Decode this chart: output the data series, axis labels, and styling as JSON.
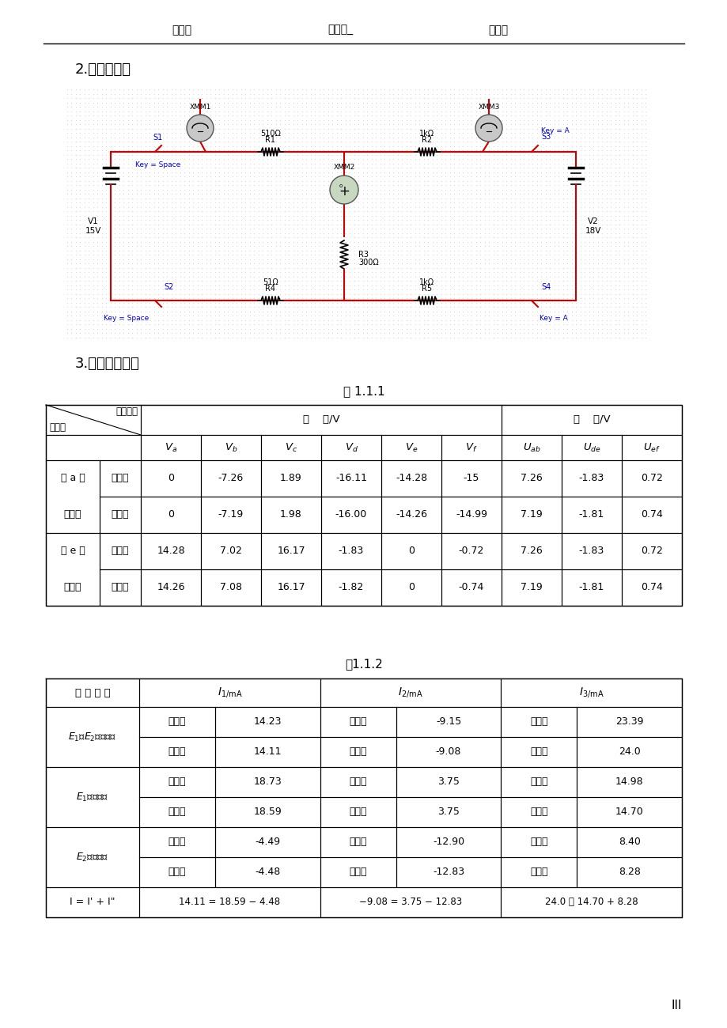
{
  "header_line1": "班级：",
  "header_line2": "姓名：_",
  "header_line3": "学号：",
  "section2_title": "2.实验电路图",
  "section3_title": "3.实验测量表格",
  "table1_title": "表 1.1.1",
  "table2_title": "表1.1.2",
  "page_num": "III",
  "table1": {
    "header1_diag_top": "测量内容",
    "header1_diag_bot": "参考点",
    "col_group1_label": "电    位/V",
    "col_group2_label": "电    压/V",
    "col_group1_ncols": 6,
    "col_group2_ncols": 3,
    "col_headers_latex": [
      "$V_a$",
      "$V_b$",
      "$V_c$",
      "$V_d$",
      "$V_e$",
      "$V_f$",
      "$U_{ab}$",
      "$U_{de}$",
      "$U_{ef}$"
    ],
    "row_groups": [
      {
        "label_line1": "以 a 为",
        "label_line2": "参考点",
        "rows": [
          {
            "type_label": "理论值",
            "values": [
              "0",
              "-7.26",
              "1.89",
              "-16.11",
              "-14.28",
              "-15",
              "7.26",
              "-1.83",
              "0.72"
            ]
          },
          {
            "type_label": "测量值",
            "values": [
              "0",
              "-7.19",
              "1.98",
              "-16.00",
              "-14.26",
              "-14.99",
              "7.19",
              "-1.81",
              "0.74"
            ]
          }
        ]
      },
      {
        "label_line1": "以 e 为",
        "label_line2": "参考点",
        "rows": [
          {
            "type_label": "理论值",
            "values": [
              "14.28",
              "7.02",
              "16.17",
              "-1.83",
              "0",
              "-0.72",
              "7.26",
              "-1.83",
              "0.72"
            ]
          },
          {
            "type_label": "测量值",
            "values": [
              "14.26",
              "7.08",
              "16.17",
              "-1.82",
              "0",
              "-0.74",
              "7.19",
              "-1.81",
              "0.74"
            ]
          }
        ]
      }
    ]
  },
  "table2": {
    "cond_header": "测 量 条 件",
    "col_headers_latex": [
      "$I_{1/\\mathrm{mA}}$",
      "$I_{2/\\mathrm{mA}}$",
      "$I_{3/\\mathrm{mA}}$"
    ],
    "row_groups": [
      {
        "group_label_line1": "$E_1$、$E_2$共同作用",
        "rows": [
          {
            "type_label": "理论值",
            "values": [
              "14.23",
              "-9.15",
              "23.39"
            ]
          },
          {
            "type_label": "测量值",
            "values": [
              "14.11",
              "-9.08",
              "24.0"
            ]
          }
        ]
      },
      {
        "group_label_line1": "$E_1$单独作用",
        "rows": [
          {
            "type_label": "理论值",
            "values": [
              "18.73",
              "3.75",
              "14.98"
            ]
          },
          {
            "type_label": "测量值",
            "values": [
              "18.59",
              "3.75",
              "14.70"
            ]
          }
        ]
      },
      {
        "group_label_line1": "$E_2$单独作用",
        "rows": [
          {
            "type_label": "理论值",
            "values": [
              "-4.49",
              "-12.90",
              "8.40"
            ]
          },
          {
            "type_label": "测量值",
            "values": [
              "-4.48",
              "-12.83",
              "8.28"
            ]
          }
        ]
      }
    ],
    "summary_label": "I = I' + I\"",
    "summary_values": [
      "14.11 = 18.59 − 4.48",
      "−9.08 = 3.75 − 12.83",
      "24.0 ～ 14.70 + 8.28"
    ]
  }
}
